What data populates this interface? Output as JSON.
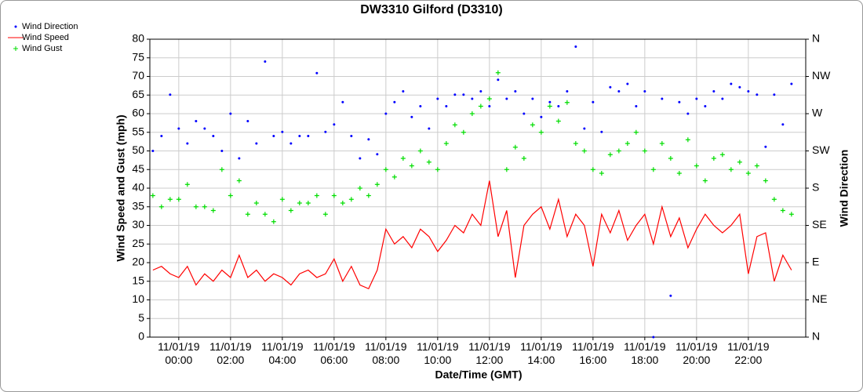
{
  "chart_data": {
    "type": "line",
    "title": "DW3310 Gilford (D3310)",
    "x_label": "Date/Time (GMT)",
    "y_label": "Wind Speed and Gust (mph)",
    "y2_label": "Wind Direction",
    "x": [
      "10/31/19 23:00",
      "10/31/19 23:20",
      "10/31/19 23:40",
      "11/01/19 00:00",
      "11/01/19 00:20",
      "11/01/19 00:40",
      "11/01/19 01:00",
      "11/01/19 01:20",
      "11/01/19 01:40",
      "11/01/19 02:00",
      "11/01/19 02:20",
      "11/01/19 02:40",
      "11/01/19 03:00",
      "11/01/19 03:20",
      "11/01/19 03:40",
      "11/01/19 04:00",
      "11/01/19 04:20",
      "11/01/19 04:40",
      "11/01/19 05:00",
      "11/01/19 05:20",
      "11/01/19 05:40",
      "11/01/19 06:00",
      "11/01/19 06:20",
      "11/01/19 06:40",
      "11/01/19 07:00",
      "11/01/19 07:20",
      "11/01/19 07:40",
      "11/01/19 08:00",
      "11/01/19 08:20",
      "11/01/19 08:40",
      "11/01/19 09:00",
      "11/01/19 09:20",
      "11/01/19 09:40",
      "11/01/19 10:00",
      "11/01/19 10:20",
      "11/01/19 10:40",
      "11/01/19 11:00",
      "11/01/19 11:20",
      "11/01/19 11:40",
      "11/01/19 12:00",
      "11/01/19 12:20",
      "11/01/19 12:40",
      "11/01/19 13:00",
      "11/01/19 13:20",
      "11/01/19 13:40",
      "11/01/19 14:00",
      "11/01/19 14:20",
      "11/01/19 14:40",
      "11/01/19 15:00",
      "11/01/19 15:20",
      "11/01/19 15:40",
      "11/01/19 16:00",
      "11/01/19 16:20",
      "11/01/19 16:40",
      "11/01/19 17:00",
      "11/01/19 17:20",
      "11/01/19 17:40",
      "11/01/19 18:00",
      "11/01/19 18:20",
      "11/01/19 18:40",
      "11/01/19 19:00",
      "11/01/19 19:20",
      "11/01/19 19:40",
      "11/01/19 20:00",
      "11/01/19 20:20",
      "11/01/19 20:40",
      "11/01/19 21:00",
      "11/01/19 21:20",
      "11/01/19 21:40",
      "11/01/19 22:00",
      "11/01/19 22:20",
      "11/01/19 22:40",
      "11/01/19 23:00",
      "11/01/19 23:20",
      "11/01/19 23:40"
    ],
    "series": [
      {
        "name": "Wind Direction",
        "color": "#0000ff",
        "mark": "dot",
        "axis": "y2",
        "values": [
          225,
          243,
          293,
          252,
          234,
          261,
          252,
          243,
          225,
          270,
          216,
          261,
          234,
          333,
          243,
          248,
          234,
          243,
          243,
          319,
          248,
          257,
          284,
          243,
          216,
          239,
          221,
          270,
          284,
          297,
          266,
          279,
          252,
          288,
          279,
          293,
          293,
          288,
          297,
          279,
          311,
          288,
          297,
          270,
          288,
          266,
          284,
          279,
          297,
          351,
          252,
          284,
          248,
          302,
          297,
          306,
          279,
          297,
          0,
          288,
          50,
          284,
          270,
          288,
          279,
          297,
          288,
          306,
          302,
          297,
          293,
          230,
          293,
          257,
          306
        ]
      },
      {
        "name": "Wind Speed",
        "color": "#ff0000",
        "mark": "line",
        "values": [
          18,
          19,
          17,
          16,
          19,
          14,
          17,
          15,
          18,
          16,
          22,
          16,
          18,
          15,
          17,
          16,
          14,
          17,
          18,
          16,
          17,
          21,
          15,
          19,
          14,
          13,
          18,
          29,
          25,
          27,
          24,
          29,
          27,
          23,
          26,
          30,
          28,
          33,
          30,
          42,
          27,
          34,
          16,
          30,
          33,
          35,
          29,
          37,
          27,
          33,
          30,
          19,
          33,
          28,
          34,
          26,
          30,
          33,
          25,
          35,
          27,
          32,
          24,
          29,
          33,
          30,
          28,
          30,
          33,
          17,
          27,
          28,
          15,
          22,
          18
        ]
      },
      {
        "name": "Wind Gust",
        "color": "#00dd00",
        "mark": "plus",
        "values": [
          38,
          35,
          37,
          37,
          41,
          35,
          35,
          34,
          45,
          38,
          42,
          33,
          36,
          33,
          31,
          37,
          34,
          36,
          36,
          38,
          33,
          38,
          36,
          37,
          40,
          38,
          41,
          45,
          43,
          48,
          46,
          50,
          47,
          45,
          52,
          57,
          55,
          60,
          62,
          64,
          71,
          45,
          51,
          48,
          57,
          55,
          62,
          58,
          63,
          52,
          50,
          45,
          44,
          49,
          50,
          52,
          55,
          50,
          45,
          52,
          48,
          44,
          53,
          46,
          42,
          48,
          49,
          45,
          47,
          44,
          46,
          42,
          37,
          34,
          33
        ]
      }
    ],
    "xlim": [
      "10/31/19 22:53",
      "11/02/19 00:13"
    ],
    "xticks": [
      "11/01/19 00:00",
      "11/01/19 02:00",
      "11/01/19 04:00",
      "11/01/19 06:00",
      "11/01/19 08:00",
      "11/01/19 10:00",
      "11/01/19 12:00",
      "11/01/19 14:00",
      "11/01/19 16:00",
      "11/01/19 18:00",
      "11/01/19 20:00",
      "11/01/19 22:00"
    ],
    "ylim": [
      0,
      80
    ],
    "yticks": [
      0,
      5,
      10,
      15,
      20,
      25,
      30,
      35,
      40,
      45,
      50,
      55,
      60,
      65,
      70,
      75,
      80
    ],
    "y2lim": [
      0,
      360
    ],
    "y2ticks": [
      {
        "value": 0,
        "label": "N"
      },
      {
        "value": 45,
        "label": "NE"
      },
      {
        "value": 90,
        "label": "E"
      },
      {
        "value": 135,
        "label": "SE"
      },
      {
        "value": 180,
        "label": "S"
      },
      {
        "value": 225,
        "label": "SW"
      },
      {
        "value": 270,
        "label": "W"
      },
      {
        "value": 315,
        "label": "NW"
      },
      {
        "value": 360,
        "label": "N"
      }
    ],
    "grid": true,
    "legend": "top-left"
  }
}
